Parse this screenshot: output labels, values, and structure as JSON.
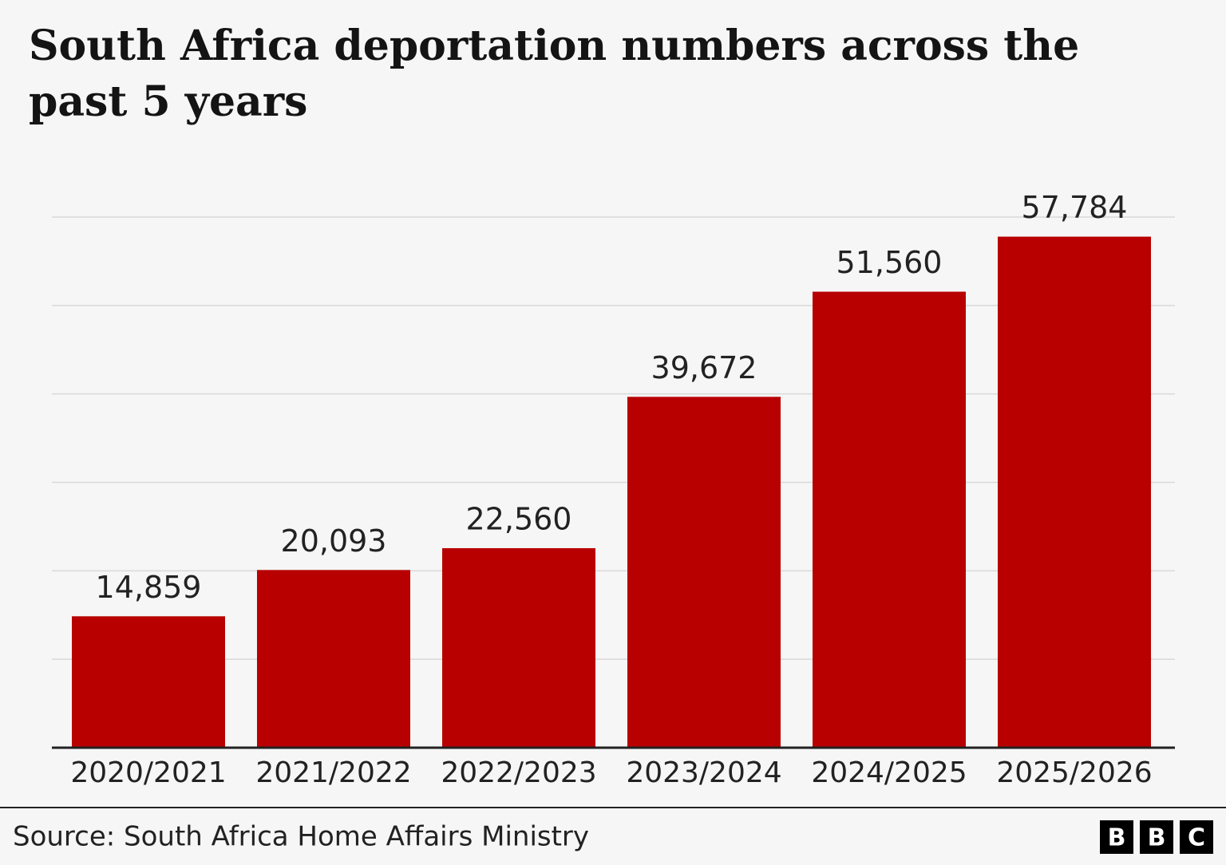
{
  "chart_data": {
    "type": "bar",
    "title": "South Africa deportation numbers across the past 5 years",
    "categories": [
      "2020/2021",
      "2021/2022",
      "2022/2023",
      "2023/2024",
      "2024/2025",
      "2025/2026"
    ],
    "values": [
      14859,
      20093,
      22560,
      39672,
      51560,
      57784
    ],
    "value_labels": [
      "14,859",
      "20,093",
      "22,560",
      "39,672",
      "51,560",
      "57,784"
    ],
    "color": "#b80000",
    "ylim": [
      0,
      60000
    ],
    "yticks": [
      0,
      10000,
      20000,
      30000,
      40000,
      50000,
      60000
    ],
    "grid": true,
    "source": "Source: South Africa Home Affairs Ministry",
    "logo": [
      "B",
      "B",
      "C"
    ]
  }
}
